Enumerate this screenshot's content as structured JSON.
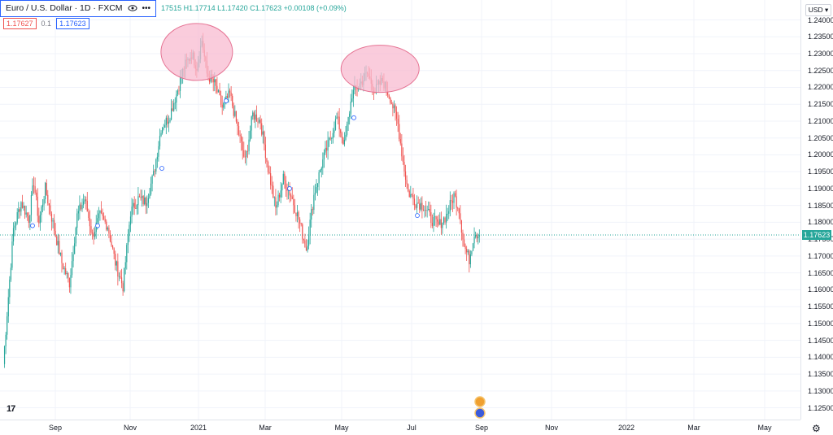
{
  "legend": {
    "symbol": "Euro / U.S. Dollar · 1D · FXCM",
    "ohlc": "17515 H1.17714 L1.17420 C1.17623 +0.00108 (+0.09%)",
    "input_a": "1.17627",
    "input_b": "0.1",
    "input_c": "1.17623"
  },
  "price_axis": {
    "currency": "USD",
    "labels": [
      "1.24000",
      "1.23500",
      "1.23000",
      "1.22500",
      "1.22000",
      "1.21500",
      "1.21000",
      "1.20500",
      "1.20000",
      "1.19500",
      "1.19000",
      "1.18500",
      "1.18000",
      "1.17500",
      "1.17000",
      "1.16500",
      "1.16000",
      "1.15500",
      "1.15000",
      "1.14500",
      "1.14000",
      "1.13500",
      "1.13000",
      "1.12500"
    ],
    "current_price": "1.17623"
  },
  "time_axis": {
    "labels": [
      "Sep",
      "Nov",
      "2021",
      "Mar",
      "May",
      "Jul",
      "Sep",
      "Nov",
      "2022",
      "Mar",
      "May"
    ]
  },
  "colors": {
    "up": "#26a69a",
    "down": "#ef5350",
    "ellipse": "#f8bbd0",
    "accent": "#2962ff"
  },
  "chart_data": {
    "type": "candlestick",
    "ylim": [
      1.122,
      1.2435
    ],
    "pivots": [
      [
        0,
        1.138
      ],
      [
        8,
        1.178
      ],
      [
        14,
        1.186
      ],
      [
        20,
        1.181
      ],
      [
        24,
        1.192
      ],
      [
        28,
        1.18
      ],
      [
        33,
        1.19
      ],
      [
        40,
        1.178
      ],
      [
        46,
        1.168
      ],
      [
        52,
        1.162
      ],
      [
        58,
        1.182
      ],
      [
        64,
        1.187
      ],
      [
        70,
        1.176
      ],
      [
        76,
        1.182
      ],
      [
        82,
        1.179
      ],
      [
        88,
        1.168
      ],
      [
        94,
        1.161
      ],
      [
        100,
        1.183
      ],
      [
        106,
        1.187
      ],
      [
        112,
        1.186
      ],
      [
        118,
        1.194
      ],
      [
        124,
        1.208
      ],
      [
        130,
        1.211
      ],
      [
        136,
        1.218
      ],
      [
        142,
        1.226
      ],
      [
        148,
        1.23
      ],
      [
        152,
        1.226
      ],
      [
        156,
        1.234
      ],
      [
        160,
        1.224
      ],
      [
        166,
        1.221
      ],
      [
        172,
        1.214
      ],
      [
        178,
        1.218
      ],
      [
        184,
        1.208
      ],
      [
        190,
        1.198
      ],
      [
        196,
        1.212
      ],
      [
        202,
        1.21
      ],
      [
        208,
        1.196
      ],
      [
        214,
        1.184
      ],
      [
        220,
        1.193
      ],
      [
        226,
        1.188
      ],
      [
        232,
        1.181
      ],
      [
        238,
        1.172
      ],
      [
        244,
        1.188
      ],
      [
        250,
        1.197
      ],
      [
        256,
        1.204
      ],
      [
        262,
        1.211
      ],
      [
        268,
        1.203
      ],
      [
        274,
        1.218
      ],
      [
        280,
        1.221
      ],
      [
        286,
        1.224
      ],
      [
        292,
        1.219
      ],
      [
        298,
        1.222
      ],
      [
        304,
        1.217
      ],
      [
        310,
        1.209
      ],
      [
        314,
        1.198
      ],
      [
        318,
        1.189
      ],
      [
        324,
        1.186
      ],
      [
        330,
        1.185
      ],
      [
        336,
        1.181
      ],
      [
        342,
        1.179
      ],
      [
        348,
        1.182
      ],
      [
        354,
        1.188
      ],
      [
        358,
        1.184
      ],
      [
        362,
        1.173
      ],
      [
        366,
        1.169
      ],
      [
        370,
        1.177
      ],
      [
        374,
        1.1762
      ]
    ],
    "annotations": [
      {
        "type": "ellipse",
        "x_index": 152,
        "y": 1.2305
      },
      {
        "type": "ellipse",
        "x_index": 296,
        "y": 1.2255
      }
    ]
  }
}
